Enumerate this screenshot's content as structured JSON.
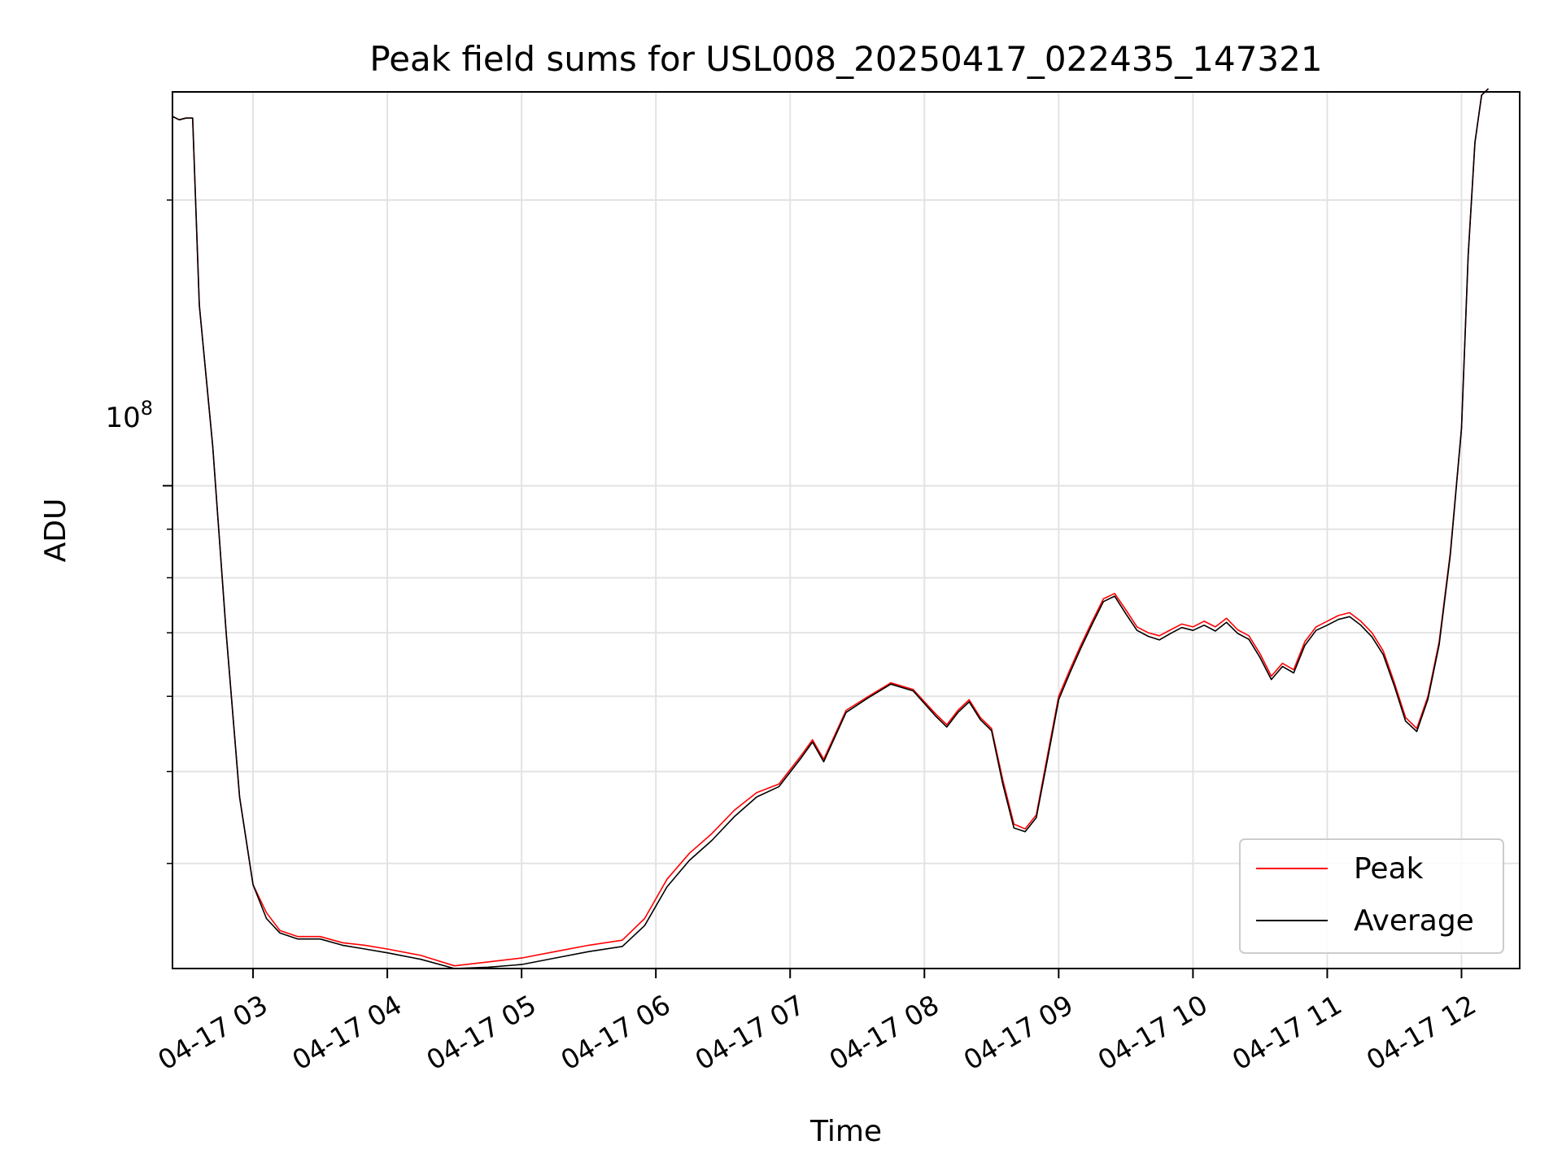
{
  "chart_data": {
    "type": "line",
    "title": "Peak field sums for USL008_20250417_022435_147321",
    "xlabel": "Time",
    "ylabel": "ADU",
    "yscale": "log",
    "grid": true,
    "legend_placement": "lower-right",
    "x_tick_labels": [
      "04-17 03",
      "04-17 04",
      "04-17 05",
      "04-17 06",
      "04-17 07",
      "04-17 08",
      "04-17 09",
      "04-17 10",
      "04-17 11",
      "04-17 12"
    ],
    "x_tick_values": [
      "2025-04-17 03:00",
      "2025-04-17 04:00",
      "2025-04-17 05:00",
      "2025-04-17 06:00",
      "2025-04-17 07:00",
      "2025-04-17 08:00",
      "2025-04-17 09:00",
      "2025-04-17 10:00",
      "2025-04-17 11:00",
      "2025-04-17 12:00"
    ],
    "y_major_tick_label": "10^8",
    "y_major_tick_value": 100000000,
    "xlim": [
      "2025-04-17 02:24",
      "2025-04-17 12:26"
    ],
    "ylim": [
      31000000,
      260000000
    ],
    "series": [
      {
        "name": "Peak",
        "color": "#ff0000",
        "x": [
          "2025-04-17 02:24",
          "2025-04-17 02:27",
          "2025-04-17 02:30",
          "2025-04-17 02:33",
          "2025-04-17 02:36",
          "2025-04-17 02:42",
          "2025-04-17 02:48",
          "2025-04-17 02:54",
          "2025-04-17 03:00",
          "2025-04-17 03:06",
          "2025-04-17 03:12",
          "2025-04-17 03:20",
          "2025-04-17 03:30",
          "2025-04-17 03:40",
          "2025-04-17 03:50",
          "2025-04-17 04:00",
          "2025-04-17 04:15",
          "2025-04-17 04:30",
          "2025-04-17 04:45",
          "2025-04-17 05:00",
          "2025-04-17 05:15",
          "2025-04-17 05:30",
          "2025-04-17 05:45",
          "2025-04-17 05:55",
          "2025-04-17 06:05",
          "2025-04-17 06:15",
          "2025-04-17 06:25",
          "2025-04-17 06:35",
          "2025-04-17 06:45",
          "2025-04-17 06:55",
          "2025-04-17 07:05",
          "2025-04-17 07:10",
          "2025-04-17 07:15",
          "2025-04-17 07:25",
          "2025-04-17 07:35",
          "2025-04-17 07:45",
          "2025-04-17 07:55",
          "2025-04-17 08:05",
          "2025-04-17 08:10",
          "2025-04-17 08:15",
          "2025-04-17 08:20",
          "2025-04-17 08:25",
          "2025-04-17 08:30",
          "2025-04-17 08:35",
          "2025-04-17 08:40",
          "2025-04-17 08:45",
          "2025-04-17 08:50",
          "2025-04-17 08:55",
          "2025-04-17 09:00",
          "2025-04-17 09:05",
          "2025-04-17 09:10",
          "2025-04-17 09:15",
          "2025-04-17 09:20",
          "2025-04-17 09:25",
          "2025-04-17 09:30",
          "2025-04-17 09:35",
          "2025-04-17 09:40",
          "2025-04-17 09:45",
          "2025-04-17 09:50",
          "2025-04-17 09:55",
          "2025-04-17 10:00",
          "2025-04-17 10:05",
          "2025-04-17 10:10",
          "2025-04-17 10:15",
          "2025-04-17 10:20",
          "2025-04-17 10:25",
          "2025-04-17 10:30",
          "2025-04-17 10:35",
          "2025-04-17 10:40",
          "2025-04-17 10:45",
          "2025-04-17 10:50",
          "2025-04-17 10:55",
          "2025-04-17 11:00",
          "2025-04-17 11:05",
          "2025-04-17 11:10",
          "2025-04-17 11:15",
          "2025-04-17 11:20",
          "2025-04-17 11:25",
          "2025-04-17 11:30",
          "2025-04-17 11:35",
          "2025-04-17 11:40",
          "2025-04-17 11:45",
          "2025-04-17 11:50",
          "2025-04-17 11:55",
          "2025-04-17 12:00",
          "2025-04-17 12:03",
          "2025-04-17 12:06",
          "2025-04-17 12:09",
          "2025-04-17 12:12"
        ],
        "y": [
          245000000,
          243000000,
          244000000,
          244000000,
          155000000,
          110000000,
          70000000,
          47000000,
          38000000,
          35500000,
          34000000,
          33500000,
          33500000,
          33000000,
          32800000,
          32500000,
          32000000,
          31200000,
          31500000,
          31800000,
          32300000,
          32800000,
          33200000,
          35000000,
          38500000,
          41000000,
          43000000,
          45500000,
          47500000,
          48500000,
          52000000,
          54000000,
          51500000,
          58000000,
          60000000,
          62000000,
          61000000,
          57500000,
          56000000,
          58000000,
          59500000,
          57000000,
          55500000,
          49000000,
          44000000,
          43500000,
          45000000,
          52000000,
          60000000,
          64000000,
          68000000,
          72000000,
          76000000,
          77000000,
          74000000,
          71000000,
          70000000,
          69500000,
          70500000,
          71500000,
          71000000,
          72000000,
          71000000,
          72500000,
          70500000,
          69500000,
          66500000,
          63000000,
          65000000,
          64000000,
          68500000,
          71000000,
          72000000,
          73000000,
          73500000,
          72000000,
          70000000,
          67000000,
          62000000,
          57000000,
          55500000,
          60000000,
          68500000,
          85000000,
          115000000,
          175000000,
          230000000,
          258000000,
          262000000
        ]
      },
      {
        "name": "Average",
        "color": "#000000",
        "x": [
          "2025-04-17 02:24",
          "2025-04-17 02:27",
          "2025-04-17 02:30",
          "2025-04-17 02:33",
          "2025-04-17 02:36",
          "2025-04-17 02:42",
          "2025-04-17 02:48",
          "2025-04-17 02:54",
          "2025-04-17 03:00",
          "2025-04-17 03:06",
          "2025-04-17 03:12",
          "2025-04-17 03:20",
          "2025-04-17 03:30",
          "2025-04-17 03:40",
          "2025-04-17 03:50",
          "2025-04-17 04:00",
          "2025-04-17 04:15",
          "2025-04-17 04:30",
          "2025-04-17 04:45",
          "2025-04-17 05:00",
          "2025-04-17 05:15",
          "2025-04-17 05:30",
          "2025-04-17 05:45",
          "2025-04-17 05:55",
          "2025-04-17 06:05",
          "2025-04-17 06:15",
          "2025-04-17 06:25",
          "2025-04-17 06:35",
          "2025-04-17 06:45",
          "2025-04-17 06:55",
          "2025-04-17 07:05",
          "2025-04-17 07:10",
          "2025-04-17 07:15",
          "2025-04-17 07:25",
          "2025-04-17 07:35",
          "2025-04-17 07:45",
          "2025-04-17 07:55",
          "2025-04-17 08:05",
          "2025-04-17 08:10",
          "2025-04-17 08:15",
          "2025-04-17 08:20",
          "2025-04-17 08:25",
          "2025-04-17 08:30",
          "2025-04-17 08:35",
          "2025-04-17 08:40",
          "2025-04-17 08:45",
          "2025-04-17 08:50",
          "2025-04-17 08:55",
          "2025-04-17 09:00",
          "2025-04-17 09:05",
          "2025-04-17 09:10",
          "2025-04-17 09:15",
          "2025-04-17 09:20",
          "2025-04-17 09:25",
          "2025-04-17 09:30",
          "2025-04-17 09:35",
          "2025-04-17 09:40",
          "2025-04-17 09:45",
          "2025-04-17 09:50",
          "2025-04-17 09:55",
          "2025-04-17 10:00",
          "2025-04-17 10:05",
          "2025-04-17 10:10",
          "2025-04-17 10:15",
          "2025-04-17 10:20",
          "2025-04-17 10:25",
          "2025-04-17 10:30",
          "2025-04-17 10:35",
          "2025-04-17 10:40",
          "2025-04-17 10:45",
          "2025-04-17 10:50",
          "2025-04-17 10:55",
          "2025-04-17 11:00",
          "2025-04-17 11:05",
          "2025-04-17 11:10",
          "2025-04-17 11:15",
          "2025-04-17 11:20",
          "2025-04-17 11:25",
          "2025-04-17 11:30",
          "2025-04-17 11:35",
          "2025-04-17 11:40",
          "2025-04-17 11:45",
          "2025-04-17 11:50",
          "2025-04-17 11:55",
          "2025-04-17 12:00",
          "2025-04-17 12:03",
          "2025-04-17 12:06",
          "2025-04-17 12:09",
          "2025-04-17 12:12"
        ],
        "y": [
          245000000,
          243000000,
          244000000,
          244000000,
          155000000,
          110000000,
          70000000,
          47000000,
          38000000,
          35000000,
          33800000,
          33300000,
          33300000,
          32800000,
          32500000,
          32200000,
          31700000,
          31000000,
          31100000,
          31300000,
          31800000,
          32300000,
          32700000,
          34400000,
          37800000,
          40300000,
          42300000,
          44800000,
          47000000,
          48200000,
          51700000,
          53700000,
          51200000,
          57700000,
          59800000,
          61800000,
          60800000,
          57200000,
          55700000,
          57700000,
          59200000,
          56700000,
          55200000,
          48500000,
          43600000,
          43200000,
          44700000,
          51500000,
          59500000,
          63500000,
          67500000,
          71500000,
          75500000,
          76500000,
          73300000,
          70400000,
          69400000,
          68800000,
          69900000,
          70900000,
          70400000,
          71300000,
          70300000,
          71800000,
          69900000,
          68900000,
          65900000,
          62500000,
          64500000,
          63500000,
          67900000,
          70400000,
          71300000,
          72300000,
          72800000,
          71300000,
          69300000,
          66400000,
          61500000,
          56500000,
          55100000,
          59600000,
          68000000,
          84500000,
          115000000,
          175000000,
          230000000,
          258000000,
          262000000
        ]
      }
    ]
  }
}
